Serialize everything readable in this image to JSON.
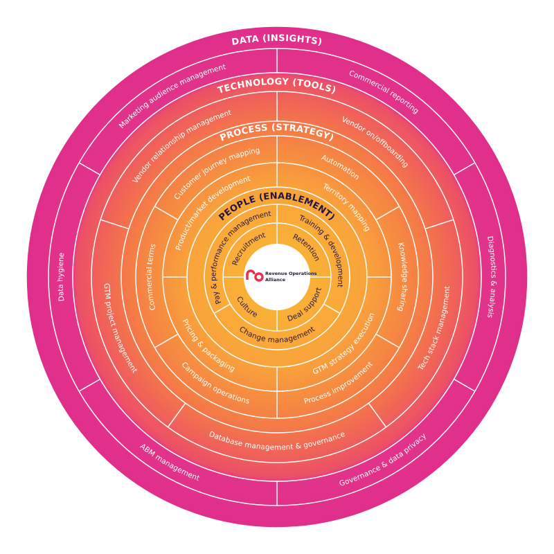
{
  "rings": [
    {
      "title": "DATA (INSIGHTS)",
      "items": [
        "Commercial reporting",
        "Diagnostics & analysis",
        "Governance & data privacy",
        "ABM management",
        "Data hygiene",
        "Marketing audience management"
      ]
    },
    {
      "title": "TECHNOLOGY (TOOLS)",
      "items": [
        "Vendor on/offboarding",
        "Tech stack management",
        "Database management & governance",
        "GTM project management",
        "Vendor relationship management"
      ]
    },
    {
      "title": "PROCESS (STRATEGY)",
      "items": [
        "Automation",
        "Knowledge sharing",
        "Process improvement",
        "Campaign operations",
        "Commercial terms",
        "Customer journey mapping"
      ],
      "inner_items": [
        "Territory mapping",
        "GTM strategy execution",
        "Pricing & packaging",
        "Product/market development"
      ]
    },
    {
      "title": "PEOPLE (ENABLEMENT)",
      "items": [
        "Training & development",
        "Change management",
        "Pay & performance management"
      ],
      "inner_items": [
        "Retention",
        "Deal support",
        "Culture",
        "Recruitment"
      ]
    }
  ],
  "center": {
    "logo": [
      "Revenue Operations",
      "Alliance"
    ]
  }
}
